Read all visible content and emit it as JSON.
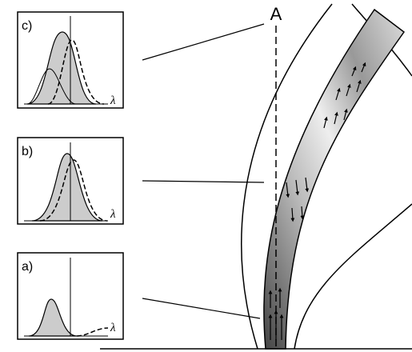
{
  "label_A": "A",
  "panels": [
    {
      "label": "c)",
      "axis_label": "λ"
    },
    {
      "label": "b)",
      "axis_label": "λ"
    },
    {
      "label": "a)",
      "axis_label": "λ"
    }
  ]
}
